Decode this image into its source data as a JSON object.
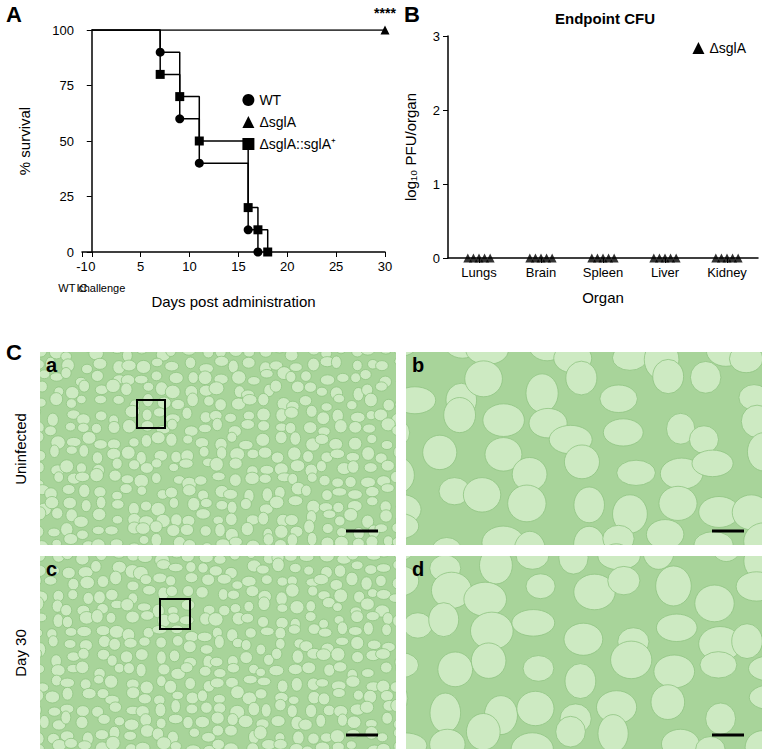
{
  "chart_data": [
    {
      "panel": "A",
      "type": "line",
      "x_label": "Days post administration",
      "y_label": "% survival",
      "xlim": [
        -1,
        30
      ],
      "xticks": [
        -1,
        0,
        5,
        10,
        15,
        20,
        25,
        30
      ],
      "ylim": [
        0,
        100
      ],
      "yticks": [
        0,
        25,
        50,
        75,
        100
      ],
      "grid": false,
      "legend": "top-right",
      "series": [
        {
          "name": "WT",
          "color": "#000000",
          "marker": "circle",
          "line_style": "step",
          "x": [
            0,
            7,
            9,
            11,
            16,
            17
          ],
          "values": [
            100,
            90,
            60,
            40,
            10,
            0
          ]
        },
        {
          "name": "ΔsglA",
          "color": "#000000",
          "marker": "triangle",
          "line_style": "step",
          "x": [
            0,
            30
          ],
          "values": [
            100,
            100
          ]
        },
        {
          "name": "ΔsglA::sglA⁺",
          "color": "#000000",
          "marker": "square",
          "line_style": "step",
          "x": [
            0,
            7,
            9,
            11,
            16,
            17,
            18
          ],
          "values": [
            100,
            80,
            70,
            50,
            20,
            10,
            0
          ]
        }
      ],
      "annotations": [
        {
          "text": "****",
          "x": 30,
          "y": 100
        },
        {
          "text": "IC",
          "x": -1
        },
        {
          "text": "WT challenge",
          "x": 0
        }
      ]
    },
    {
      "panel": "B",
      "type": "scatter",
      "title": "Endpoint CFU",
      "x_label": "Organ",
      "y_label": "log₁₀ PFU/organ",
      "categories": [
        "Lungs",
        "Brain",
        "Spleen",
        "Liver",
        "Kidney"
      ],
      "ylim": [
        0,
        3
      ],
      "yticks": [
        0,
        1,
        2,
        3
      ],
      "grid": false,
      "legend": "top-right",
      "series": [
        {
          "name": "ΔsglA",
          "color": "#000000",
          "marker": "triangle",
          "values": [
            [
              0,
              0,
              0,
              0,
              0
            ],
            [
              0,
              0,
              0,
              0,
              0
            ],
            [
              0,
              0,
              0,
              0,
              0
            ],
            [
              0,
              0,
              0,
              0,
              0
            ],
            [
              0,
              0,
              0,
              0,
              0
            ]
          ]
        }
      ]
    }
  ],
  "figure": {
    "panel": "C",
    "rows": [
      {
        "label": "Uninfected",
        "images": [
          "a",
          "b"
        ]
      },
      {
        "label": "Day 30",
        "images": [
          "c",
          "d"
        ]
      }
    ]
  }
}
